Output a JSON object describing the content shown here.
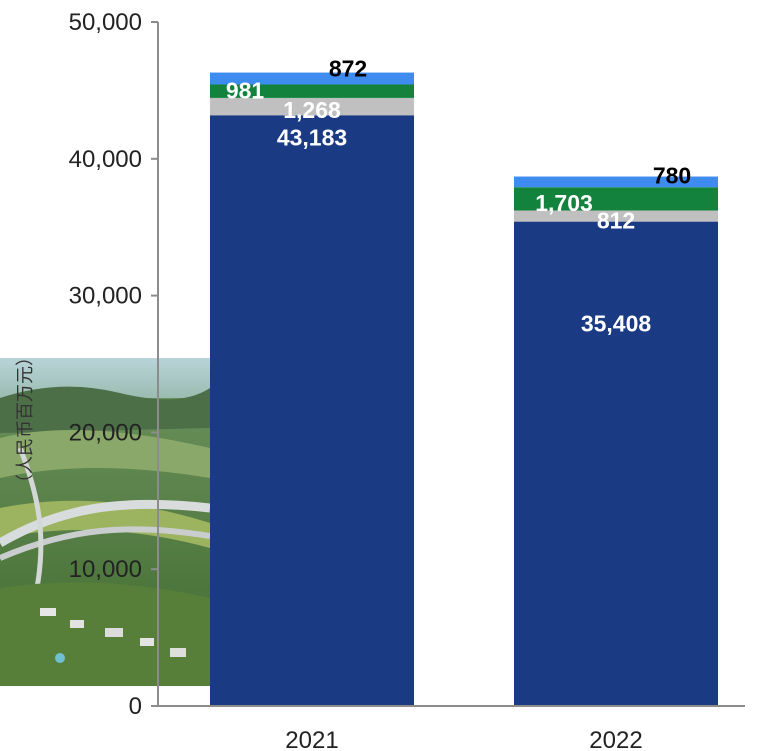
{
  "chart_data": {
    "type": "bar",
    "stacked": true,
    "categories": [
      "2021",
      "2022"
    ],
    "series": [
      {
        "values": [
          43183,
          35408
        ],
        "color": "#1b3a84",
        "label_color": "#ffffff"
      },
      {
        "values": [
          1268,
          812
        ],
        "color": "#c0c0c0",
        "label_color": "#ffffff"
      },
      {
        "values": [
          981,
          1703
        ],
        "color": "#13823d",
        "label_color": "#ffffff"
      },
      {
        "values": [
          872,
          780
        ],
        "color": "#3f8cf0",
        "label_color": "#000000"
      }
    ],
    "data_labels": [
      [
        "43,183",
        "35,408"
      ],
      [
        "1,268",
        "812"
      ],
      [
        "981",
        "1,703"
      ],
      [
        "872",
        "780"
      ]
    ],
    "y_ticks": [
      "0",
      "10,000",
      "20,000",
      "30,000",
      "40,000",
      "50,000"
    ],
    "ylim": [
      0,
      50000
    ],
    "ylabel": "（人民币百万元）",
    "grid": false,
    "legend": "none"
  }
}
